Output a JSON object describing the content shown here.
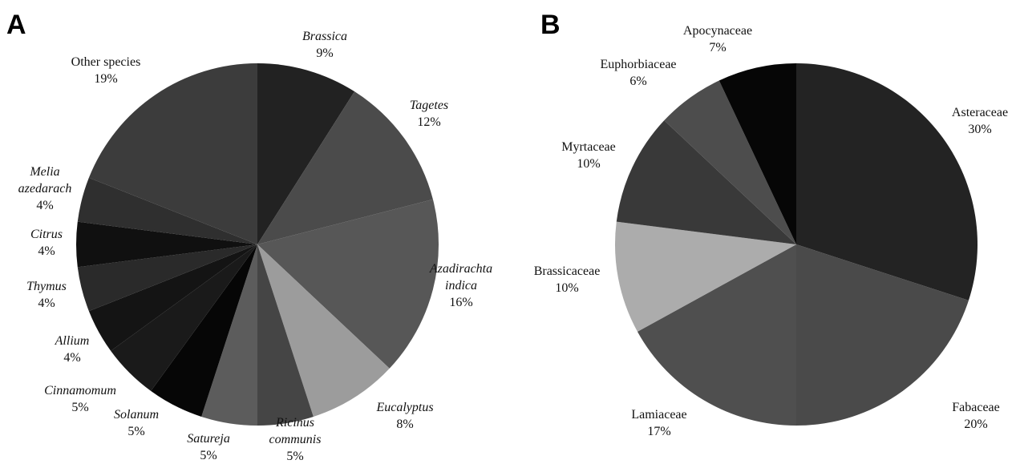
{
  "chart_data": [
    {
      "panel": "A",
      "type": "pie",
      "title": "",
      "start": "12 o'clock",
      "direction": "clockwise",
      "slices": [
        {
          "label": [
            "Brassica"
          ],
          "pct": "9%",
          "value": 9,
          "italic": true,
          "color": "#222222"
        },
        {
          "label": [
            "Tagetes"
          ],
          "pct": "12%",
          "value": 12,
          "italic": true,
          "color": "#4b4b4b"
        },
        {
          "label": [
            "Azadirachta",
            "indica"
          ],
          "pct": "16%",
          "value": 16,
          "italic": true,
          "color": "#575757"
        },
        {
          "label": [
            "Eucalyptus"
          ],
          "pct": "8%",
          "value": 8,
          "italic": true,
          "color": "#9c9c9c"
        },
        {
          "label": [
            "Ricinus",
            "communis"
          ],
          "pct": "5%",
          "value": 5,
          "italic": true,
          "color": "#454545"
        },
        {
          "label": [
            "Satureja"
          ],
          "pct": "5%",
          "value": 5,
          "italic": true,
          "color": "#5c5c5c"
        },
        {
          "label": [
            "Solanum"
          ],
          "pct": "5%",
          "value": 5,
          "italic": true,
          "color": "#060606"
        },
        {
          "label": [
            "Cinnamomum"
          ],
          "pct": "5%",
          "value": 5,
          "italic": true,
          "color": "#1a1a1a"
        },
        {
          "label": [
            "Allium"
          ],
          "pct": "4%",
          "value": 4,
          "italic": true,
          "color": "#141414"
        },
        {
          "label": [
            "Thymus"
          ],
          "pct": "4%",
          "value": 4,
          "italic": true,
          "color": "#2a2a2a"
        },
        {
          "label": [
            "Citrus"
          ],
          "pct": "4%",
          "value": 4,
          "italic": true,
          "color": "#101010"
        },
        {
          "label": [
            "Melia",
            "azedarach"
          ],
          "pct": "4%",
          "value": 4,
          "italic": true,
          "color": "#2f2f2f"
        },
        {
          "label": [
            "Other species"
          ],
          "pct": "19%",
          "value": 19,
          "italic": false,
          "color": "#3c3c3c"
        }
      ]
    },
    {
      "panel": "B",
      "type": "pie",
      "title": "",
      "start": "12 o'clock",
      "direction": "clockwise",
      "slices": [
        {
          "label": [
            "Asteraceae"
          ],
          "pct": "30%",
          "value": 30,
          "italic": false,
          "color": "#232323"
        },
        {
          "label": [
            "Fabaceae"
          ],
          "pct": "20%",
          "value": 20,
          "italic": false,
          "color": "#4a4a4a"
        },
        {
          "label": [
            "Lamiaceae"
          ],
          "pct": "17%",
          "value": 17,
          "italic": false,
          "color": "#4f4f4f"
        },
        {
          "label": [
            "Brassicaceae"
          ],
          "pct": "10%",
          "value": 10,
          "italic": false,
          "color": "#acacac"
        },
        {
          "label": [
            "Myrtaceae"
          ],
          "pct": "10%",
          "value": 10,
          "italic": false,
          "color": "#393939"
        },
        {
          "label": [
            "Euphorbiaceae"
          ],
          "pct": "6%",
          "value": 6,
          "italic": false,
          "color": "#4d4d4d"
        },
        {
          "label": [
            "Apocynaceae"
          ],
          "pct": "7%",
          "value": 7,
          "italic": false,
          "color": "#060606"
        }
      ]
    }
  ]
}
